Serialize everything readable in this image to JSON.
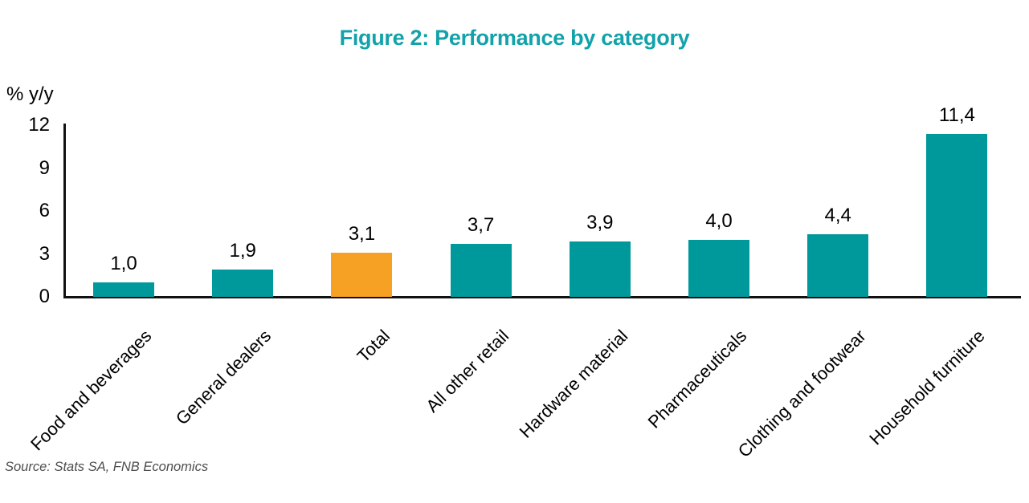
{
  "figure": {
    "title": "Figure 2: Performance by category",
    "source_note": "Source: Stats SA, FNB Economics"
  },
  "chart_data": {
    "type": "bar",
    "title": "Figure 2: Performance by category",
    "ylabel": "% y/y",
    "xlabel": "",
    "categories": [
      "Food and beverages",
      "General dealers",
      "Total",
      "All other retail",
      "Hardware material",
      "Pharmaceuticals",
      "Clothing and footwear",
      "Household furniture"
    ],
    "values": [
      1.0,
      1.9,
      3.1,
      3.7,
      3.9,
      4.0,
      4.4,
      11.4
    ],
    "value_labels": [
      "1,0",
      "1,9",
      "3,1",
      "3,7",
      "3,9",
      "4,0",
      "4,4",
      "11,4"
    ],
    "highlight_index": 2,
    "highlight_category": "Total",
    "yticks": [
      0,
      3,
      6,
      9,
      12
    ],
    "ylim": [
      0,
      12
    ],
    "grid": false,
    "legend": null,
    "xtick_rotation_deg": 45,
    "decimal_separator": ",",
    "colors": {
      "bar": "#00999B",
      "highlight_bar": "#F6A124",
      "title": "#11A2AA",
      "axis": "#111111",
      "text": "#000000",
      "source_text": "#4D4E50"
    }
  }
}
